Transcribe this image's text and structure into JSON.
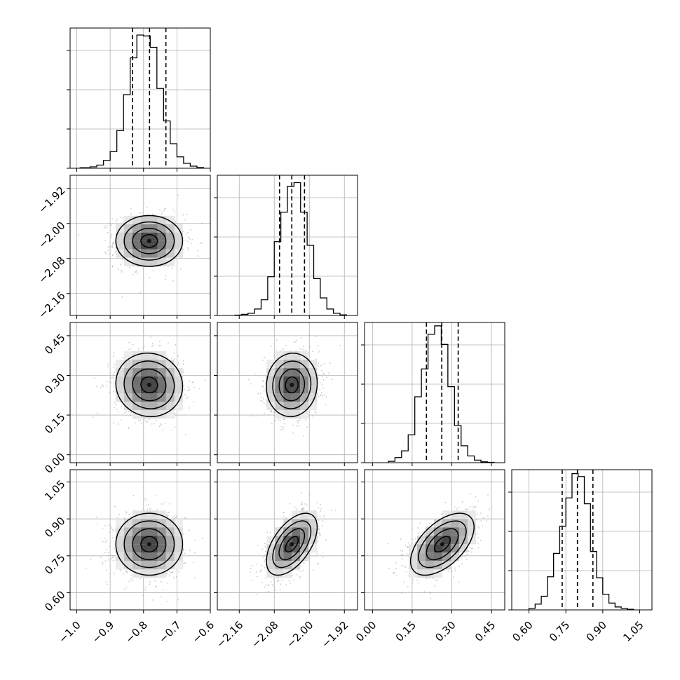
{
  "chart_data": {
    "type": "corner",
    "title": "",
    "n_params": 4,
    "params": [
      {
        "name": "",
        "range": [
          -1.02,
          -0.6
        ],
        "ticks": [
          -1.0,
          -0.9,
          -0.8,
          -0.7,
          -0.6
        ],
        "tick_labels": [
          "−1.0",
          "−0.9",
          "−0.8",
          "−0.7",
          "−0.6"
        ],
        "quantiles": [
          -0.833,
          -0.782,
          -0.733
        ],
        "mean": -0.783,
        "sd": 0.05,
        "histogram_bins": [
          -0.99,
          -0.96,
          -0.94,
          -0.92,
          -0.9,
          -0.88,
          -0.86,
          -0.84,
          -0.82,
          -0.8,
          -0.78,
          -0.76,
          -0.74,
          -0.72,
          -0.7,
          -0.68,
          -0.66,
          -0.64,
          -0.62
        ],
        "histogram_counts": [
          3,
          8,
          18,
          45,
          95,
          215,
          420,
          630,
          760,
          755,
          690,
          455,
          270,
          140,
          65,
          28,
          12,
          4
        ],
        "histogram_max": 800
      },
      {
        "name": "",
        "range": [
          -2.21,
          -1.89
        ],
        "ticks": [
          -2.16,
          -2.08,
          -2.0,
          -1.92
        ],
        "tick_labels": [
          "−2.16",
          "−2.08",
          "−2.00",
          "−1.92"
        ],
        "quantiles": [
          -2.068,
          -2.04,
          -2.011
        ],
        "mean": -2.04,
        "sd": 0.029,
        "histogram_bins": [
          -2.17,
          -2.155,
          -2.14,
          -2.125,
          -2.11,
          -2.095,
          -2.08,
          -2.065,
          -2.05,
          -2.035,
          -2.02,
          -2.005,
          -1.99,
          -1.975,
          -1.96,
          -1.945,
          -1.93,
          -1.915
        ],
        "histogram_counts": [
          2,
          6,
          12,
          35,
          85,
          210,
          400,
          560,
          700,
          720,
          560,
          380,
          200,
          95,
          35,
          12,
          3
        ],
        "histogram_max": 760
      },
      {
        "name": "",
        "range": [
          -0.03,
          0.5
        ],
        "ticks": [
          0.0,
          0.15,
          0.3,
          0.45
        ],
        "tick_labels": [
          "0.00",
          "0.15",
          "0.30",
          "0.45"
        ],
        "quantiles": [
          0.204,
          0.262,
          0.324
        ],
        "mean": 0.264,
        "sd": 0.06,
        "histogram_bins": [
          0.06,
          0.085,
          0.11,
          0.135,
          0.16,
          0.185,
          0.21,
          0.235,
          0.26,
          0.285,
          0.31,
          0.335,
          0.36,
          0.385,
          0.41,
          0.435,
          0.46
        ],
        "histogram_counts": [
          8,
          30,
          70,
          165,
          390,
          555,
          760,
          810,
          700,
          450,
          220,
          100,
          40,
          15,
          5,
          2
        ],
        "histogram_max": 830
      },
      {
        "name": "",
        "range": [
          0.53,
          1.1
        ],
        "ticks": [
          0.6,
          0.75,
          0.9,
          1.05
        ],
        "tick_labels": [
          "0.60",
          "0.75",
          "0.90",
          "1.05"
        ],
        "quantiles": [
          0.735,
          0.797,
          0.86
        ],
        "mean": 0.797,
        "sd": 0.063,
        "histogram_bins": [
          0.6,
          0.625,
          0.65,
          0.675,
          0.7,
          0.725,
          0.75,
          0.775,
          0.8,
          0.825,
          0.85,
          0.875,
          0.9,
          0.925,
          0.95,
          0.975,
          1.0,
          1.025
        ],
        "histogram_counts": [
          8,
          30,
          70,
          170,
          290,
          430,
          575,
          700,
          685,
          545,
          300,
          165,
          80,
          35,
          15,
          8,
          3
        ],
        "histogram_max": 720
      }
    ],
    "correlations": {
      "1-0": 0.0,
      "2-0": -0.05,
      "2-1": 0.05,
      "3-0": 0.0,
      "3-1": 0.55,
      "3-2": 0.55
    },
    "contour_levels_sigma": [
      0.5,
      1.0,
      1.5,
      2.0
    ],
    "scatter_outside_contours": true,
    "grid": true,
    "legend": "none",
    "colors": {
      "hist_line": "#000000",
      "quantile_line": "#000000",
      "contour": "#000000",
      "scatter": "#9e9e9e",
      "density_dark": "#3a3a3a",
      "grid": "#b0b0b0"
    }
  }
}
